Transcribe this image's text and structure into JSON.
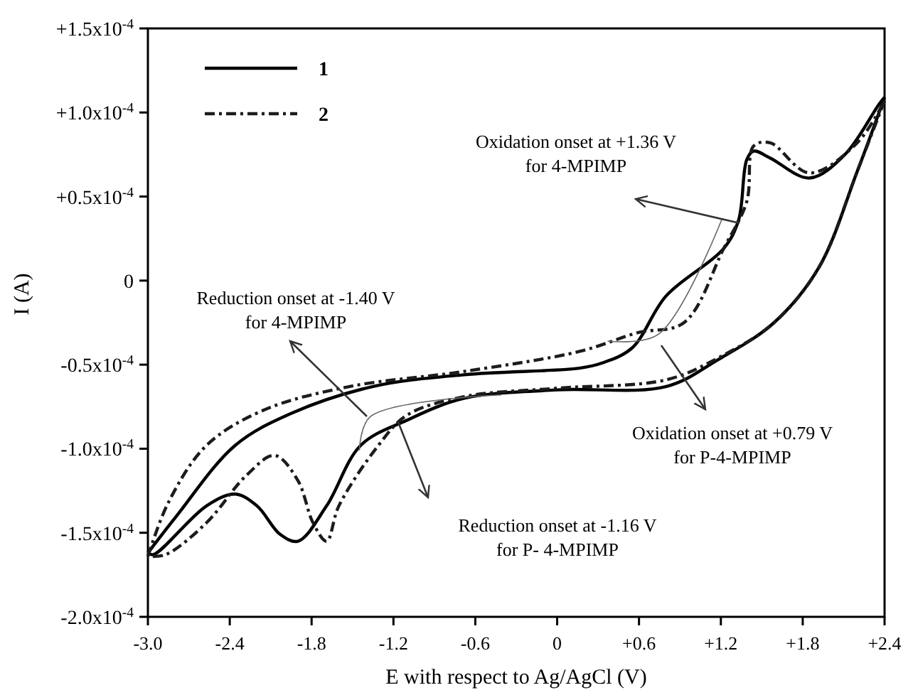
{
  "chart_data": {
    "type": "line",
    "xlabel": "E with respect to Ag/AgCl (V)",
    "ylabel": "I (A)",
    "xlim": [
      -3.0,
      2.4
    ],
    "ylim": [
      -0.0002,
      0.00015
    ],
    "xticks": [
      {
        "value": -3.0,
        "label": "-3.0"
      },
      {
        "value": -2.4,
        "label": "-2.4"
      },
      {
        "value": -1.8,
        "label": "-1.8"
      },
      {
        "value": -1.2,
        "label": "-1.2"
      },
      {
        "value": -0.6,
        "label": "-0.6"
      },
      0,
      {
        "value": 0.6,
        "label": "+0.6"
      },
      {
        "value": 1.2,
        "label": "+1.2"
      },
      {
        "value": 1.8,
        "label": "+1.8"
      },
      {
        "value": 2.4,
        "label": "+2.4"
      }
    ],
    "yticks": [
      {
        "value": -0.0002,
        "label": "-2.0x10$^{-4}$"
      },
      {
        "value": -0.00015,
        "label": "-1.5x10$^{-4}$"
      },
      {
        "value": -0.0001,
        "label": "-1.0x10$^{-4}$"
      },
      {
        "value": -5e-05,
        "label": "-0.5x10$^{-4}$"
      },
      0,
      {
        "value": 5e-05,
        "label": "+0.5x10$^{-4}$"
      },
      {
        "value": 0.0001,
        "label": "+1.0x10$^{-4}$"
      },
      {
        "value": 0.00015,
        "label": "+1.5x10$^{-4}$"
      }
    ],
    "legend": "top left",
    "grid": false,
    "marker": "none",
    "series": [
      {
        "name": "1",
        "color": "#000000",
        "line_style": "solid",
        "x": [
          -3.0,
          -2.79,
          -2.36,
          -1.95,
          -1.35,
          -0.68,
          0.17,
          0.33,
          0.55,
          0.8,
          1.22,
          1.33,
          1.39,
          1.44,
          1.56,
          1.85,
          2.11,
          2.36,
          2.4
        ],
        "values": [
          -0.000162,
          -0.00014,
          -9.8e-05,
          -7.9e-05,
          -6.3e-05,
          -5.6e-05,
          -5.2e-05,
          -4.9e-05,
          -4e-05,
          -9e-06,
          1.9e-05,
          3.6e-05,
          7.2e-05,
          7.7e-05,
          7.3e-05,
          6.1e-05,
          7.5e-05,
          0.000105,
          0.000109
        ]
      },
      {
        "color": "#000000",
        "line_style": "solid",
        "x": [
          2.4,
          2.2,
          1.92,
          1.59,
          1.18,
          0.8,
          0.0,
          -0.68,
          -1.1,
          -1.44,
          -1.69,
          -1.9,
          -2.03,
          -2.2,
          -2.36,
          -2.57,
          -2.96,
          -3.0
        ],
        "values": [
          0.000109,
          6.5e-05,
          8e-06,
          -2.5e-05,
          -4.7e-05,
          -6.3e-05,
          -6.5e-05,
          -7e-05,
          -8.3e-05,
          -9.8e-05,
          -0.000134,
          -0.000155,
          -0.000151,
          -0.000134,
          -0.000127,
          -0.000134,
          -0.000163,
          -0.000162
        ]
      },
      {
        "name": "2",
        "color": "#1c1c1c",
        "line_style": "dashed",
        "x": [
          -3.0,
          -2.85,
          -2.57,
          -2.15,
          -1.52,
          -0.68,
          0.17,
          0.59,
          0.93,
          1.22,
          1.39,
          1.44,
          1.56,
          1.85,
          2.2,
          2.4
        ],
        "values": [
          -0.000164,
          -0.000132,
          -9.8e-05,
          -7.7e-05,
          -6.3e-05,
          -5.4e-05,
          -4.2e-05,
          -3.1e-05,
          -2.5e-05,
          1.9e-05,
          4.7e-05,
          8e-05,
          8.2e-05,
          6.4e-05,
          8.2e-05,
          0.000107
        ]
      },
      {
        "color": "#1c1c1c",
        "line_style": "dashed",
        "x": [
          2.4,
          2.2,
          1.92,
          1.59,
          1.18,
          0.8,
          0.0,
          -0.68,
          -1.1,
          -1.31,
          -1.6,
          -1.69,
          -1.79,
          -1.9,
          -2.07,
          -2.28,
          -2.57,
          -2.87,
          -3.0
        ],
        "values": [
          0.000107,
          6.5e-05,
          8e-06,
          -2.5e-05,
          -4.6e-05,
          -5.9e-05,
          -6.4e-05,
          -6.9e-05,
          -8e-05,
          -9.8e-05,
          -0.000134,
          -0.000155,
          -0.000144,
          -0.000119,
          -0.000104,
          -0.000116,
          -0.000144,
          -0.000163,
          -0.000164
        ]
      },
      {
        "color": "#666666",
        "line_style": "solid",
        "x": [
          -0.41,
          -1.37,
          -1.45
        ],
        "values": [
          -6.8e-05,
          -8.1e-05,
          -0.000101
        ]
      },
      {
        "color": "#666666",
        "line_style": "solid",
        "x": [
          0.37,
          0.74,
          1.21
        ],
        "values": [
          -3.6e-05,
          -3.2e-05,
          3.7e-05
        ]
      }
    ],
    "annotations": [
      "Oxidation onset at +1.36 V\nfor 4-MPIMP",
      "Reduction onset  at -1.40 V\nfor 4-MPIMP",
      "Oxidation onset at +0.79 V\nfor P-4-MPIMP",
      "Reduction onset  at -1.16 V\nfor P- 4-MPIMP"
    ]
  }
}
